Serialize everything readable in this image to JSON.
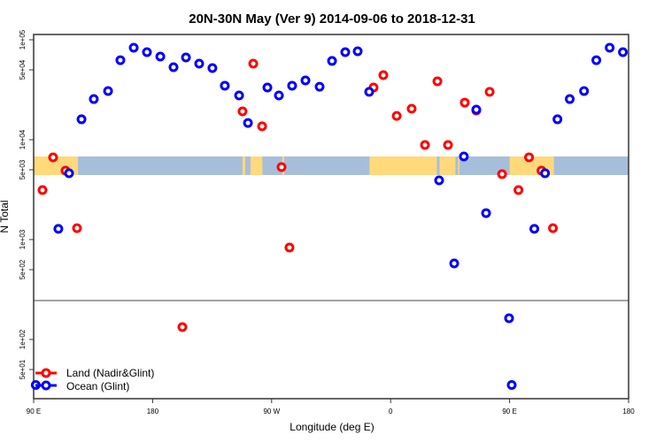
{
  "chart_data": {
    "type": "scatter",
    "title": "20N-30N May (Ver 9)   2014-09-06 to 2018-12-31",
    "xlabel": "Longitude (deg E)",
    "ylabel": "N Total",
    "y_scale": "log",
    "xlim_deg_east_wrapped": [
      90,
      540
    ],
    "ylim": [
      27,
      110000
    ],
    "x_ticks": [
      {
        "value": 90,
        "label": "90 E"
      },
      {
        "value": 180,
        "label": "180"
      },
      {
        "value": 270,
        "label": "90 W"
      },
      {
        "value": 360,
        "label": "0"
      },
      {
        "value": 450,
        "label": "90 E"
      },
      {
        "value": 540,
        "label": "180"
      }
    ],
    "y_ticks": [
      {
        "value": 100000,
        "label": "1e+05"
      },
      {
        "value": 50000,
        "label": "5e+04"
      },
      {
        "value": 10000,
        "label": "1e+04"
      },
      {
        "value": 5000,
        "label": "5e+03"
      },
      {
        "value": 1000,
        "label": "1e+03"
      },
      {
        "value": 500,
        "label": "5e+02"
      },
      {
        "value": 100,
        "label": "1e+02"
      },
      {
        "value": 50,
        "label": "5e+01"
      }
    ],
    "panel_break_value": 190,
    "grid": false,
    "legend_position": "bottom-left",
    "background_map": "land/ocean strip 20N-30N",
    "colors": {
      "land": "#ff0000",
      "ocean": "#0000ff",
      "map_land": "#ffd97a",
      "map_ocean": "#a7bedb"
    },
    "series": [
      {
        "name": "Land (Nadir&Glint)",
        "color": "#ff0000",
        "points": [
          {
            "lon": 96.7,
            "n": 3130
          },
          {
            "lon": 104.7,
            "n": 6650
          },
          {
            "lon": 114.1,
            "n": 4900
          },
          {
            "lon": 122.8,
            "n": 1300
          },
          {
            "lon": -157.5,
            "n": 133
          },
          {
            "lon": -112.0,
            "n": 19200
          },
          {
            "lon": -103.9,
            "n": 57700
          },
          {
            "lon": -97.2,
            "n": 13600
          },
          {
            "lon": -82.5,
            "n": 5320
          },
          {
            "lon": -76.5,
            "n": 832
          },
          {
            "lon": -12.9,
            "n": 33300
          },
          {
            "lon": -5.5,
            "n": 44300
          },
          {
            "lon": 4.6,
            "n": 17300
          },
          {
            "lon": 15.9,
            "n": 20400
          },
          {
            "lon": 26.0,
            "n": 8850
          },
          {
            "lon": 35.4,
            "n": 38400
          },
          {
            "lon": 43.4,
            "n": 8850
          },
          {
            "lon": 56.1,
            "n": 23500
          },
          {
            "lon": 64.8,
            "n": 19600
          },
          {
            "lon": 74.9,
            "n": 30100
          },
          {
            "lon": 84.3,
            "n": 4520
          }
        ]
      },
      {
        "name": "Ocean (Glint)",
        "color": "#0000ff",
        "points": [
          {
            "lon": 91.6,
            "n": 35
          },
          {
            "lon": 108.7,
            "n": 1280
          },
          {
            "lon": 116.8,
            "n": 4610
          },
          {
            "lon": 126.2,
            "n": 16000
          },
          {
            "lon": 135.5,
            "n": 25500
          },
          {
            "lon": 146.3,
            "n": 30700
          },
          {
            "lon": 155.6,
            "n": 62500
          },
          {
            "lon": 165.7,
            "n": 83200
          },
          {
            "lon": 175.7,
            "n": 75200
          },
          {
            "lon": -174.2,
            "n": 67900
          },
          {
            "lon": -164.2,
            "n": 53200
          },
          {
            "lon": -154.8,
            "n": 66500
          },
          {
            "lon": -144.8,
            "n": 57700
          },
          {
            "lon": -134.8,
            "n": 52100
          },
          {
            "lon": -125.4,
            "n": 34700
          },
          {
            "lon": -114.6,
            "n": 27700
          },
          {
            "lon": -107.9,
            "n": 14700
          },
          {
            "lon": -93.2,
            "n": 33300
          },
          {
            "lon": -84.5,
            "n": 27700
          },
          {
            "lon": -74.5,
            "n": 34700
          },
          {
            "lon": -64.4,
            "n": 39200
          },
          {
            "lon": -53.7,
            "n": 33900
          },
          {
            "lon": -44.3,
            "n": 61400
          },
          {
            "lon": -34.3,
            "n": 75200
          },
          {
            "lon": -24.9,
            "n": 76800
          },
          {
            "lon": -16.2,
            "n": 30100
          },
          {
            "lon": 36.7,
            "n": 3920
          },
          {
            "lon": 48.1,
            "n": 577
          },
          {
            "lon": 55.4,
            "n": 6790
          },
          {
            "lon": 64.8,
            "n": 20000
          },
          {
            "lon": 72.2,
            "n": 1840
          },
          {
            "lon": 89.6,
            "n": 163
          }
        ]
      }
    ]
  }
}
